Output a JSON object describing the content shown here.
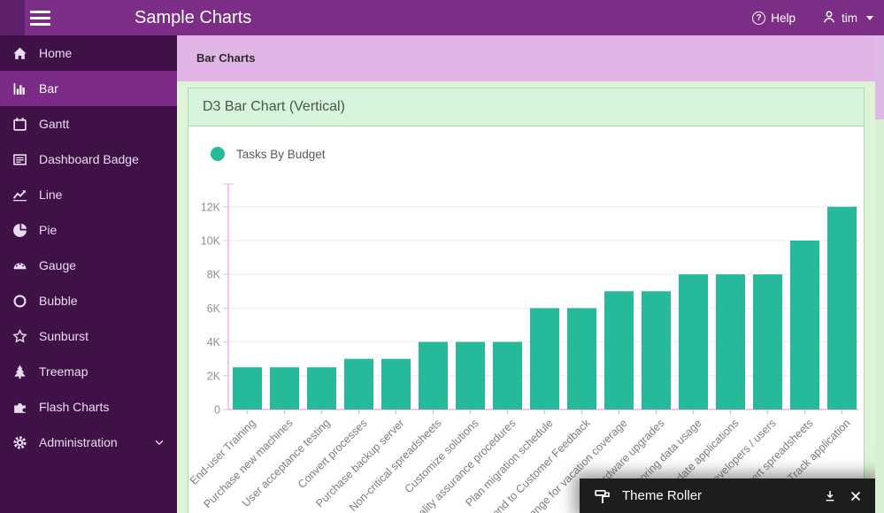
{
  "header": {
    "title": "Sample Charts",
    "help_label": "Help",
    "user_name": "tim",
    "icons": [
      "hamburger-menu-icon",
      "help-icon",
      "user-icon",
      "caret-down-icon"
    ]
  },
  "breadcrumb": {
    "title": "Bar Charts"
  },
  "sidebar": {
    "items": [
      {
        "label": "Home",
        "icon": "home-icon",
        "active": false
      },
      {
        "label": "Bar",
        "icon": "bar-chart-icon",
        "active": true
      },
      {
        "label": "Gantt",
        "icon": "calendar-icon",
        "active": false
      },
      {
        "label": "Dashboard Badge",
        "icon": "badge-list-icon",
        "active": false
      },
      {
        "label": "Line",
        "icon": "line-chart-icon",
        "active": false
      },
      {
        "label": "Pie",
        "icon": "pie-chart-icon",
        "active": false
      },
      {
        "label": "Gauge",
        "icon": "gauge-icon",
        "active": false
      },
      {
        "label": "Bubble",
        "icon": "bubble-icon",
        "active": false
      },
      {
        "label": "Sunburst",
        "icon": "sunburst-star-icon",
        "active": false
      },
      {
        "label": "Treemap",
        "icon": "treemap-tree-icon",
        "active": false
      },
      {
        "label": "Flash Charts",
        "icon": "puzzle-icon",
        "active": false
      },
      {
        "label": "Administration",
        "icon": "gear-icon",
        "active": false,
        "has_submenu": true
      }
    ]
  },
  "panel": {
    "title": "D3 Bar Chart (Vertical)"
  },
  "legend": {
    "label": "Tasks By Budget",
    "marker_color": "#26b99a"
  },
  "chart_data": {
    "type": "bar",
    "title": "D3 Bar Chart (Vertical)",
    "legend_entries": [
      {
        "name": "Tasks By Budget",
        "color": "#26b99a"
      }
    ],
    "categories": [
      "End-user Training",
      "Purchase new machines",
      "User acceptance testing",
      "Convert processes",
      "Purchase backup server",
      "Non-critical spreadsheets",
      "Customize solutions",
      "Quality assurance procedures",
      "Plan migration schedule",
      "Respond to Customer Feedback",
      "Arrange for vacation coverage",
      "Hardware upgrades",
      "Monitoring data usage",
      "Update applications",
      "Developers / users",
      "Convert spreadsheets",
      "Track application"
    ],
    "series": [
      {
        "name": "Tasks By Budget",
        "values": [
          2500,
          2500,
          2500,
          3000,
          3000,
          4000,
          4000,
          4000,
          6000,
          6000,
          7000,
          7000,
          8000,
          8000,
          8000,
          10000,
          12000
        ]
      }
    ],
    "y_axis": {
      "ticks": [
        {
          "value": 0,
          "label": "0"
        },
        {
          "value": 2000,
          "label": "2K"
        },
        {
          "value": 4000,
          "label": "4K"
        },
        {
          "value": 6000,
          "label": "6K"
        },
        {
          "value": 8000,
          "label": "8K"
        },
        {
          "value": 10000,
          "label": "10K"
        },
        {
          "value": 12000,
          "label": "12K"
        }
      ],
      "range": [
        0,
        13000
      ]
    },
    "grid": "horizontal",
    "legend_position": "top-left",
    "x_label_rotation": -45
  },
  "theme_roller": {
    "title": "Theme Roller",
    "icons": [
      "paint-roller-icon",
      "download-icon",
      "close-icon"
    ]
  },
  "colors": {
    "header_bg": "#7c2e87",
    "header_dark_strip": "#5e2069",
    "sidebar_bg": "#3f1146",
    "sidebar_active_bg": "#7b2b85",
    "breadcrumb_bg": "#e2b5e7",
    "content_bg": "#def3d7",
    "panel_header_bg": "#d7f5dc",
    "panel_border": "#a9dcae",
    "bar_color": "#26b99a",
    "axis_color": "#f5aef0",
    "grid_color": "#fbe2f8",
    "tick_label_color": "#8f8f8f",
    "theme_roller_bg": "#1d1d1d",
    "scroll_thumb": "#debae6",
    "scroll_track": "#d8efd4"
  }
}
